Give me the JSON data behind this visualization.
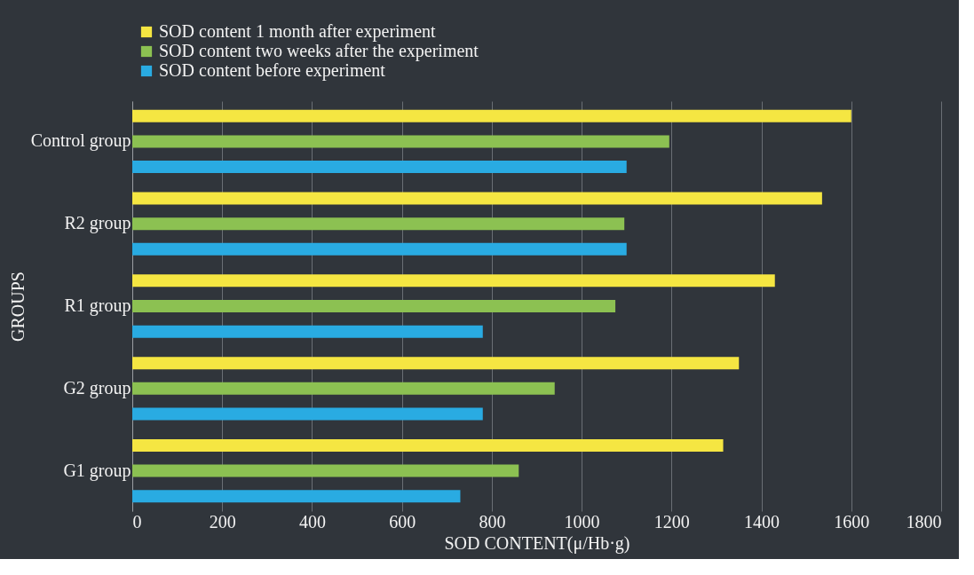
{
  "chart_data": {
    "type": "bar",
    "orientation": "horizontal",
    "xlabel": "SOD CONTENT(μ/Hb·g)",
    "ylabel": "GROUPS",
    "categories": [
      "Control group",
      "R2 group",
      "R1 group",
      "G2 group",
      "G1 group"
    ],
    "series": [
      {
        "name": "SOD content 1 month after experiment",
        "color": "#f5e642",
        "values": [
          1600,
          1535,
          1430,
          1350,
          1315
        ]
      },
      {
        "name": "SOD content two weeks after the experiment",
        "color": "#8cc152",
        "values": [
          1195,
          1095,
          1075,
          940,
          860
        ]
      },
      {
        "name": "SOD content before experiment",
        "color": "#29abe2",
        "values": [
          1100,
          1100,
          780,
          780,
          730
        ]
      }
    ],
    "xlim": [
      0,
      1800
    ],
    "xticks": [
      0,
      200,
      400,
      600,
      800,
      1000,
      1200,
      1400,
      1600,
      1800
    ],
    "grid": "x",
    "legend": "top"
  }
}
